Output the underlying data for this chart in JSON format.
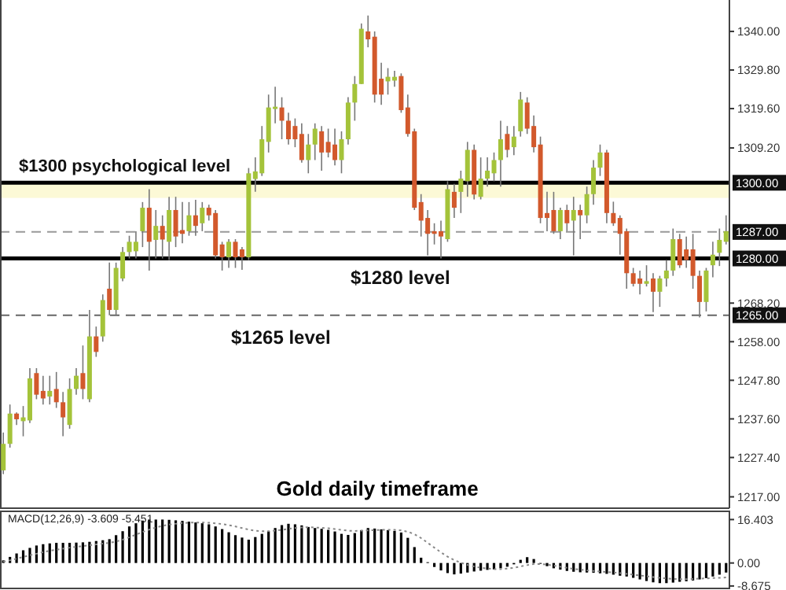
{
  "chart_data": [
    {
      "type": "candlestick",
      "title": "Gold daily timeframe",
      "categories": [
        null,
        null,
        null,
        null,
        null,
        null,
        null,
        null,
        null,
        null,
        null,
        null,
        null,
        null,
        null,
        null,
        null,
        null,
        null,
        null,
        null,
        null,
        null,
        null,
        null,
        null,
        null,
        null,
        null,
        null,
        null,
        null,
        null,
        null,
        null,
        null,
        null,
        null,
        null,
        null,
        null,
        null,
        null,
        null,
        null,
        null,
        null,
        null,
        null,
        null,
        null,
        null,
        null,
        null,
        null,
        null,
        null,
        null,
        null,
        null,
        null,
        null,
        null,
        null,
        null,
        null,
        null,
        null,
        null,
        null,
        null,
        null,
        null,
        null,
        null,
        null,
        null,
        null,
        null,
        null,
        null,
        null,
        null,
        null,
        null,
        null,
        null,
        null,
        null,
        null,
        null,
        null,
        null,
        null,
        null,
        null,
        null,
        null,
        null,
        null,
        null,
        null,
        null,
        null,
        null,
        null,
        null,
        null,
        null,
        null
      ],
      "ohlc": [
        [
          1224,
          1234,
          1223,
          1231
        ],
        [
          1231,
          1241.4,
          1230,
          1239
        ],
        [
          1239,
          1239.3,
          1236,
          1237.5
        ],
        [
          1237,
          1241,
          1233,
          1238
        ],
        [
          1237.2,
          1251,
          1236.5,
          1248.3
        ],
        [
          1249.7,
          1251,
          1242.8,
          1244
        ],
        [
          1245,
          1249,
          1241.4,
          1243
        ],
        [
          1243.5,
          1249,
          1241.4,
          1245
        ],
        [
          1245.5,
          1250,
          1240.5,
          1242
        ],
        [
          1242,
          1244.7,
          1233,
          1238
        ],
        [
          1236,
          1248.3,
          1235,
          1245.5
        ],
        [
          1245.5,
          1251,
          1244,
          1249
        ],
        [
          1249.7,
          1257,
          1242.8,
          1245.5
        ],
        [
          1242.8,
          1266.4,
          1242,
          1259.4
        ],
        [
          1259.4,
          1262,
          1254,
          1255.3
        ],
        [
          1259.4,
          1270.5,
          1258,
          1269
        ],
        [
          1272,
          1278.9,
          1265,
          1266.4
        ],
        [
          1266.4,
          1278.9,
          1265,
          1277.5
        ],
        [
          1274.7,
          1283,
          1274,
          1281.7
        ],
        [
          1281.7,
          1286,
          1280,
          1284.4
        ],
        [
          1281.9,
          1287.2,
          1280,
          1284.4
        ],
        [
          1287.2,
          1294.9,
          1283,
          1293.4
        ],
        [
          1293.4,
          1298.3,
          1276.8,
          1284.4
        ],
        [
          1284.9,
          1292.8,
          1280,
          1288.6
        ],
        [
          1288.6,
          1291.4,
          1280,
          1285
        ],
        [
          1284.4,
          1296.3,
          1279.6,
          1292.8
        ],
        [
          1292.8,
          1296.3,
          1283,
          1285.8
        ],
        [
          1287.5,
          1294.9,
          1284,
          1286.5
        ],
        [
          1287.2,
          1294.9,
          1286,
          1291.4
        ],
        [
          1291.4,
          1295.5,
          1286,
          1288.6
        ],
        [
          1289.3,
          1294.9,
          1287.2,
          1293.4
        ],
        [
          1293.4,
          1294.2,
          1290,
          1291.4
        ],
        [
          1292,
          1292.8,
          1280,
          1280.8
        ],
        [
          1283.7,
          1284.4,
          1276.8,
          1280.3
        ],
        [
          1280.3,
          1285.1,
          1277.5,
          1284.4
        ],
        [
          1284.4,
          1285.1,
          1277.5,
          1280.3
        ],
        [
          1282.4,
          1283,
          1277,
          1280.3
        ],
        [
          1280.3,
          1303.9,
          1279.6,
          1302.5
        ],
        [
          1301,
          1306.7,
          1297.6,
          1303
        ],
        [
          1302.5,
          1315,
          1301.8,
          1311.5
        ],
        [
          1310.8,
          1323.3,
          1308,
          1319.9
        ],
        [
          1319.5,
          1325.4,
          1315.7,
          1320.1
        ],
        [
          1319.9,
          1322.6,
          1311.5,
          1316.4
        ],
        [
          1316.4,
          1318.5,
          1310.1,
          1311.5
        ],
        [
          1315,
          1317,
          1309.4,
          1311.5
        ],
        [
          1312.9,
          1315.7,
          1305.3,
          1306
        ],
        [
          1306,
          1312.9,
          1302.5,
          1310.1
        ],
        [
          1310.1,
          1315.7,
          1306,
          1314.3
        ],
        [
          1313.6,
          1315,
          1303.2,
          1308
        ],
        [
          1310.8,
          1314.3,
          1306.7,
          1308
        ],
        [
          1310.1,
          1314.3,
          1304.6,
          1306
        ],
        [
          1306,
          1313.6,
          1302.5,
          1311.5
        ],
        [
          1311.5,
          1322.6,
          1310.1,
          1321.2
        ],
        [
          1321.2,
          1328.2,
          1316.4,
          1326.1
        ],
        [
          1326.1,
          1342.1,
          1326.1,
          1340.7
        ],
        [
          1340,
          1344.2,
          1335.8,
          1337.9
        ],
        [
          1338.6,
          1340,
          1321.2,
          1323.3
        ],
        [
          1327.5,
          1331.7,
          1320.6,
          1323.3
        ],
        [
          1326.8,
          1330.3,
          1323.3,
          1328
        ],
        [
          1327,
          1329.6,
          1325.4,
          1328
        ],
        [
          1328.2,
          1328.9,
          1318.5,
          1319.2
        ],
        [
          1319.9,
          1323.3,
          1312.2,
          1312.9
        ],
        [
          1313.6,
          1314.3,
          1292.8,
          1293.4
        ],
        [
          1294.9,
          1297,
          1285.8,
          1290
        ],
        [
          1290.7,
          1292.8,
          1280.8,
          1286.5
        ],
        [
          1287.2,
          1289.3,
          1283.7,
          1286.5
        ],
        [
          1287.2,
          1290,
          1280,
          1285.8
        ],
        [
          1285.1,
          1300.4,
          1284.4,
          1298.3
        ],
        [
          1297.6,
          1299.7,
          1290.7,
          1293.4
        ],
        [
          1297.6,
          1303.2,
          1292,
          1301.1
        ],
        [
          1300.4,
          1310.8,
          1296.3,
          1308.7
        ],
        [
          1308.7,
          1310.1,
          1295.6,
          1296.9
        ],
        [
          1296.3,
          1306.7,
          1295.6,
          1301.1
        ],
        [
          1301.1,
          1306.7,
          1299,
          1303.2
        ],
        [
          1302.5,
          1308,
          1300.4,
          1306
        ],
        [
          1306,
          1316.4,
          1299,
          1311.5
        ],
        [
          1312.9,
          1315,
          1306.7,
          1308.7
        ],
        [
          1309.4,
          1315,
          1307.3,
          1312.2
        ],
        [
          1313.6,
          1324,
          1312.2,
          1322
        ],
        [
          1321.2,
          1322.6,
          1312.9,
          1314.3
        ],
        [
          1315,
          1317.8,
          1308,
          1309.4
        ],
        [
          1310.1,
          1312.2,
          1289.3,
          1290.7
        ],
        [
          1292,
          1297.6,
          1287.2,
          1290.7
        ],
        [
          1292.8,
          1297.6,
          1286.5,
          1287.2
        ],
        [
          1287.2,
          1293.4,
          1285.1,
          1292.8
        ],
        [
          1292.8,
          1294.2,
          1287.2,
          1289.3
        ],
        [
          1290,
          1296.3,
          1280.8,
          1292.8
        ],
        [
          1292.8,
          1294.2,
          1285.1,
          1291.4
        ],
        [
          1291.4,
          1299,
          1289.3,
          1297
        ],
        [
          1297,
          1306,
          1294.2,
          1304
        ],
        [
          1304,
          1310.1,
          1301.8,
          1308
        ],
        [
          1308,
          1308.7,
          1289.3,
          1292
        ],
        [
          1292,
          1295,
          1288.6,
          1289.3
        ],
        [
          1290.7,
          1291.4,
          1281,
          1286.5
        ],
        [
          1287.2,
          1287.9,
          1272,
          1276.1
        ],
        [
          1276.1,
          1277.5,
          1272.6,
          1273.3
        ],
        [
          1274.7,
          1276.8,
          1270.5,
          1273.3
        ],
        [
          1273.3,
          1278.2,
          1272.6,
          1274
        ],
        [
          1274.7,
          1276.1,
          1265.8,
          1271.2
        ],
        [
          1271.2,
          1275.4,
          1267.2,
          1274.7
        ],
        [
          1274.7,
          1279.6,
          1272.6,
          1276.8
        ],
        [
          1276.8,
          1287.9,
          1275.4,
          1285.1
        ],
        [
          1285.1,
          1286.5,
          1277.5,
          1278.2
        ],
        [
          1282.4,
          1285.8,
          1277.5,
          1279.6
        ],
        [
          1282.4,
          1286.5,
          1272,
          1275.4
        ],
        [
          1275.4,
          1276.8,
          1264.4,
          1268.5
        ],
        [
          1268.5,
          1277.5,
          1266,
          1276.8
        ],
        [
          1278.2,
          1284.4,
          1275,
          1281
        ],
        [
          1281.5,
          1287.9,
          1278,
          1284.9
        ],
        [
          1284.4,
          1291.4,
          1283.7,
          1287.2
        ]
      ],
      "colors": [
        "#a4c33a",
        "#a4c33a",
        "#d2592c",
        "#a4c33a",
        "#a4c33a",
        "#d2592c",
        "#d2592c",
        "#a4c33a",
        "#d2592c",
        "#d2592c",
        "#a4c33a",
        "#a4c33a",
        "#d2592c",
        "#a4c33a",
        "#d2592c",
        "#a4c33a",
        "#d2592c",
        "#a4c33a",
        "#a4c33a",
        "#a4c33a",
        "#a4c33a",
        "#a4c33a",
        "#d2592c",
        "#a4c33a",
        "#d2592c",
        "#a4c33a",
        "#d2592c",
        "#d2592c",
        "#a4c33a",
        "#d2592c",
        "#a4c33a",
        "#d2592c",
        "#d2592c",
        "#d2592c",
        "#a4c33a",
        "#d2592c",
        "#d2592c",
        "#a4c33a",
        "#a4c33a",
        "#a4c33a",
        "#a4c33a",
        "#a4c33a",
        "#d2592c",
        "#d2592c",
        "#d2592c",
        "#d2592c",
        "#a4c33a",
        "#a4c33a",
        "#d2592c",
        "#d2592c",
        "#d2592c",
        "#a4c33a",
        "#a4c33a",
        "#a4c33a",
        "#a4c33a",
        "#d2592c",
        "#d2592c",
        "#d2592c",
        "#a4c33a",
        "#a4c33a",
        "#d2592c",
        "#d2592c",
        "#d2592c",
        "#d2592c",
        "#d2592c",
        "#d2592c",
        "#d2592c",
        "#a4c33a",
        "#d2592c",
        "#a4c33a",
        "#a4c33a",
        "#d2592c",
        "#a4c33a",
        "#a4c33a",
        "#a4c33a",
        "#a4c33a",
        "#d2592c",
        "#a4c33a",
        "#a4c33a",
        "#d2592c",
        "#d2592c",
        "#d2592c",
        "#d2592c",
        "#d2592c",
        "#a4c33a",
        "#d2592c",
        "#a4c33a",
        "#d2592c",
        "#a4c33a",
        "#a4c33a",
        "#a4c33a",
        "#d2592c",
        "#d2592c",
        "#d2592c",
        "#d2592c",
        "#d2592c",
        "#d2592c",
        "#a4c33a",
        "#d2592c",
        "#a4c33a",
        "#a4c33a",
        "#a4c33a",
        "#d2592c",
        "#d2592c",
        "#d2592c",
        "#d2592c",
        "#a4c33a",
        "#a4c33a",
        "#a4c33a",
        "#a4c33a"
      ],
      "ylim": [
        1214,
        1348.3
      ],
      "yticks": [
        {
          "value": 1340,
          "label": "1340.00"
        },
        {
          "value": 1329.8,
          "label": "1329.80"
        },
        {
          "value": 1319.6,
          "label": "1319.60"
        },
        {
          "value": 1309.2,
          "label": "1309.20"
        },
        {
          "value": 1268.2,
          "label": "1268.20"
        },
        {
          "value": 1258,
          "label": "1258.00"
        },
        {
          "value": 1247.8,
          "label": "1247.80"
        },
        {
          "value": 1237.6,
          "label": "1237.60"
        },
        {
          "value": 1227.4,
          "label": "1227.40"
        },
        {
          "value": 1217,
          "label": "1217.00"
        }
      ],
      "ref_lines": [
        {
          "axis": "y",
          "value": 1300,
          "label": "1300.00",
          "color": "#000000",
          "line_style": "solid"
        },
        {
          "axis": "y",
          "value": 1287,
          "label": "1287.00",
          "color": "#999999",
          "line_style": "dashed"
        },
        {
          "axis": "y",
          "value": 1280,
          "label": "1280.00",
          "color": "#000000",
          "line_style": "solid"
        },
        {
          "axis": "y",
          "value": 1265,
          "label": "1265.00",
          "color": "#666666",
          "line_style": "dashed"
        }
      ],
      "bands": [
        {
          "axis": "y",
          "from": 1296,
          "to": 1300,
          "color": "#fcf9d6"
        }
      ],
      "annotations": [
        {
          "text": "$1300 psychological level",
          "y": 1300
        },
        {
          "text": "$1280 level",
          "y": 1280
        },
        {
          "text": "$1265 level",
          "y": 1265
        }
      ],
      "tick_labels": "y",
      "grid": false
    },
    {
      "type": "bar",
      "title": "MACD(12,26,9) -3.609 -5.451",
      "categories": [
        null,
        null,
        null,
        null,
        null,
        null,
        null,
        null,
        null,
        null,
        null,
        null,
        null,
        null,
        null,
        null,
        null,
        null,
        null,
        null,
        null,
        null,
        null,
        null,
        null,
        null,
        null,
        null,
        null,
        null,
        null,
        null,
        null,
        null,
        null,
        null,
        null,
        null,
        null,
        null,
        null,
        null,
        null,
        null,
        null,
        null,
        null,
        null,
        null,
        null,
        null,
        null,
        null,
        null,
        null,
        null,
        null,
        null,
        null,
        null,
        null,
        null,
        null,
        null,
        null,
        null,
        null,
        null,
        null,
        null,
        null,
        null,
        null,
        null,
        null,
        null,
        null,
        null,
        null,
        null,
        null,
        null,
        null,
        null,
        null,
        null,
        null,
        null,
        null,
        null,
        null,
        null,
        null,
        null,
        null,
        null,
        null,
        null,
        null,
        null,
        null,
        null,
        null,
        null,
        null,
        null,
        null,
        null,
        null,
        null
      ],
      "series": [
        {
          "type": "bar",
          "color": "#000000",
          "values": [
            1.0,
            2.3,
            3.6,
            4.8,
            5.7,
            6.6,
            7.1,
            7.4,
            7.6,
            7.6,
            7.6,
            7.7,
            7.8,
            8.0,
            8.3,
            8.6,
            9.0,
            10.5,
            12.0,
            13.8,
            15.0,
            16.0,
            16.4,
            16.4,
            16.4,
            16.3,
            16.1,
            15.9,
            15.6,
            15.3,
            15.0,
            14.6,
            13.8,
            12.8,
            11.6,
            10.5,
            9.6,
            8.8,
            9.8,
            11.0,
            12.0,
            13.2,
            14.3,
            14.8,
            14.6,
            14.2,
            13.6,
            13.2,
            12.9,
            12.5,
            11.9,
            11.0,
            10.6,
            11.3,
            12.4,
            13.2,
            13.0,
            12.7,
            12.4,
            12.1,
            11.5,
            9.5,
            6.0,
            2.0,
            0.3,
            -1.5,
            -2.8,
            -3.8,
            -4.3,
            -4.0,
            -3.6,
            -3.2,
            -2.9,
            -2.6,
            -2.4,
            -2.0,
            -1.4,
            -0.5,
            1.2,
            2.2,
            1.5,
            -0.3,
            -1.2,
            -2.0,
            -2.5,
            -3.0,
            -3.3,
            -3.5,
            -3.6,
            -3.7,
            -3.9,
            -4.1,
            -4.4,
            -4.8,
            -5.1,
            -5.6,
            -6.2,
            -6.8,
            -7.3,
            -7.6,
            -7.6,
            -7.4,
            -7.1,
            -6.9,
            -6.6,
            -6.2,
            -5.7,
            -5.1,
            -4.4,
            -3.609
          ]
        },
        {
          "type": "line",
          "color": "#888888",
          "line_style": "dotted",
          "values": [
            0.5,
            1,
            1.6,
            2.3,
            2.9,
            3.5,
            4.1,
            4.6,
            5.0,
            5.4,
            5.8,
            6.1,
            6.4,
            6.7,
            7.0,
            7.3,
            7.6,
            8.1,
            8.8,
            9.7,
            10.7,
            11.7,
            12.6,
            13.4,
            14.0,
            14.5,
            14.8,
            15.1,
            15.2,
            15.3,
            15.3,
            15.2,
            15.0,
            14.7,
            14.3,
            13.8,
            13.2,
            12.6,
            12.2,
            12.0,
            12.0,
            12.2,
            12.5,
            12.9,
            13.2,
            13.4,
            13.5,
            13.4,
            13.3,
            13.1,
            12.8,
            12.5,
            12.2,
            12.1,
            12.2,
            12.3,
            12.4,
            12.5,
            12.5,
            12.5,
            12.3,
            11.8,
            10.9,
            9.4,
            7.6,
            5.8,
            4.0,
            2.4,
            1.1,
            0.1,
            -0.7,
            -1.3,
            -1.8,
            -2.1,
            -2.3,
            -2.3,
            -2.1,
            -1.8,
            -1.3,
            -0.8,
            -0.4,
            -0.4,
            -0.6,
            -1.0,
            -1.4,
            -1.8,
            -2.2,
            -2.5,
            -2.8,
            -3.0,
            -3.2,
            -3.4,
            -3.6,
            -3.8,
            -4.1,
            -4.4,
            -4.7,
            -5.0,
            -5.3,
            -5.6,
            -5.8,
            -6.0,
            -6.1,
            -6.1,
            -6.0,
            -5.9,
            -5.8,
            -5.7,
            -5.6,
            -5.451
          ]
        }
      ],
      "ylim": [
        -9.6,
        19.5
      ],
      "yticks": [
        {
          "value": 16.403,
          "label": "16.403"
        },
        {
          "value": 0,
          "label": "0.00"
        },
        {
          "value": -8.675,
          "label": "-8.675"
        }
      ],
      "tick_labels": "y",
      "grid": false
    }
  ]
}
